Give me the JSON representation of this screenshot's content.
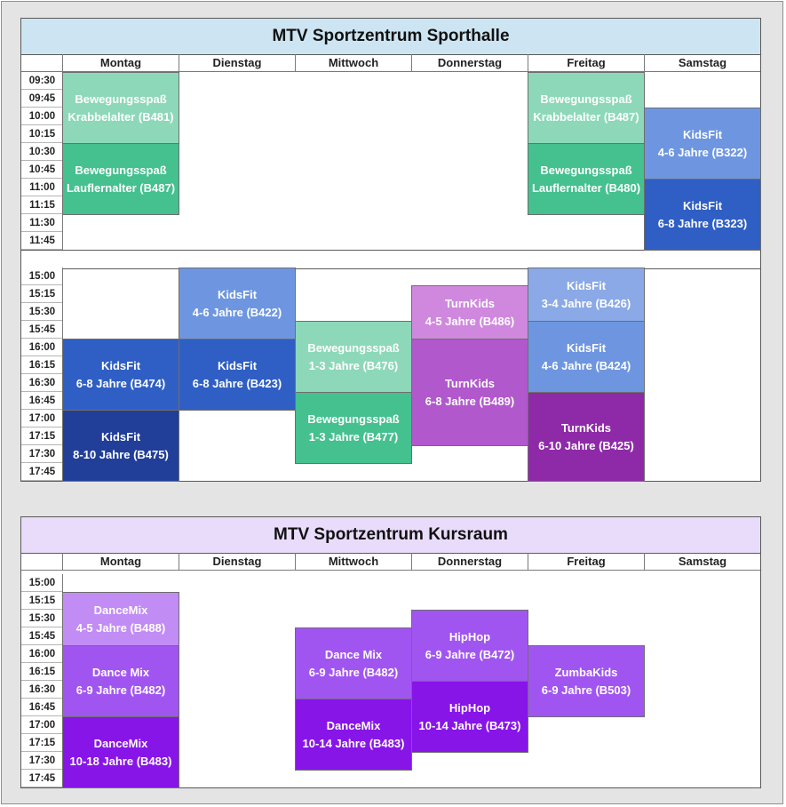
{
  "colors": {
    "mint": "#8dd8b9",
    "green": "#45c08f",
    "blue_light": "#6e96e0",
    "blue_mid": "#2f5fc4",
    "blue_dark": "#213f99",
    "blue_pale": "#8aa9e6",
    "violet_light": "#cf88de",
    "violet": "#b158cc",
    "purple": "#8e2aa8",
    "lav_light": "#c18cf3",
    "lav": "#a155f0",
    "lav_deep": "#8715e8"
  },
  "days": [
    "Montag",
    "Dienstag",
    "Mittwoch",
    "Donnerstag",
    "Freitag",
    "Samstag"
  ],
  "halle": {
    "title": "MTV Sportzentrum Sporthalle",
    "morning_times": [
      "09:30",
      "09:45",
      "10:00",
      "10:15",
      "10:30",
      "10:45",
      "11:00",
      "11:15",
      "11:30",
      "11:45"
    ],
    "afternoon_times": [
      "15:00",
      "15:15",
      "15:30",
      "15:45",
      "16:00",
      "16:15",
      "16:30",
      "16:45",
      "17:00",
      "17:15",
      "17:30",
      "17:45"
    ],
    "morning": [
      {
        "name": "block-bewegungsspass-b481",
        "day": 0,
        "start": 0,
        "len": 4,
        "color": "mint",
        "line1": "Bewegungsspaß",
        "line2": "Krabbelalter (B481)"
      },
      {
        "name": "block-bewegungsspass-b487",
        "day": 0,
        "start": 4,
        "len": 4,
        "color": "green",
        "line1": "Bewegungsspaß",
        "line2": "Lauflernalter (B487)"
      },
      {
        "name": "block-bewegungsspass-b487-fr",
        "day": 4,
        "start": 0,
        "len": 4,
        "color": "mint",
        "line1": "Bewegungsspaß",
        "line2": "Krabbelalter (B487)"
      },
      {
        "name": "block-bewegungsspass-b480",
        "day": 4,
        "start": 4,
        "len": 4,
        "color": "green",
        "line1": "Bewegungsspaß",
        "line2": "Lauflernalter (B480)"
      },
      {
        "name": "block-kidsfit-b322",
        "day": 5,
        "start": 2,
        "len": 4,
        "color": "blue_light",
        "line1": "KidsFit",
        "line2": "4-6 Jahre (B322)"
      },
      {
        "name": "block-kidsfit-b323",
        "day": 5,
        "start": 6,
        "len": 4,
        "color": "blue_mid",
        "line1": "KidsFit",
        "line2": "6-8 Jahre (B323)"
      }
    ],
    "afternoon": [
      {
        "name": "block-kidsfit-b474",
        "day": 0,
        "start": 4,
        "len": 4,
        "color": "blue_mid",
        "line1": "KidsFit",
        "line2": "6-8 Jahre (B474)"
      },
      {
        "name": "block-kidsfit-b475",
        "day": 0,
        "start": 8,
        "len": 4,
        "color": "blue_dark",
        "line1": "KidsFit",
        "line2": "8-10 Jahre (B475)"
      },
      {
        "name": "block-kidsfit-b422",
        "day": 1,
        "start": 0,
        "len": 4,
        "color": "blue_light",
        "line1": "KidsFit",
        "line2": "4-6 Jahre (B422)"
      },
      {
        "name": "block-kidsfit-b423",
        "day": 1,
        "start": 4,
        "len": 4,
        "color": "blue_mid",
        "line1": "KidsFit",
        "line2": "6-8 Jahre  (B423)"
      },
      {
        "name": "block-bewegungsspass-b476",
        "day": 2,
        "start": 3,
        "len": 4,
        "color": "mint",
        "line1": "Bewegungsspaß",
        "line2": "1-3 Jahre (B476)"
      },
      {
        "name": "block-bewegungsspass-b477",
        "day": 2,
        "start": 7,
        "len": 4,
        "color": "green",
        "line1": "Bewegungsspaß",
        "line2": "1-3 Jahre (B477)"
      },
      {
        "name": "block-turnkids-b486",
        "day": 3,
        "start": 1,
        "len": 3,
        "color": "violet_light",
        "line1": "TurnKids",
        "line2": "4-5 Jahre (B486)"
      },
      {
        "name": "block-turnkids-b489",
        "day": 3,
        "start": 4,
        "len": 6,
        "color": "violet",
        "line1": "TurnKids",
        "line2": "6-8 Jahre (B489)"
      },
      {
        "name": "block-kidsfit-b426",
        "day": 4,
        "start": 0,
        "len": 3,
        "color": "blue_pale",
        "line1": "KidsFit",
        "line2": "3-4 Jahre (B426)"
      },
      {
        "name": "block-kidsfit-b424",
        "day": 4,
        "start": 3,
        "len": 4,
        "color": "blue_light",
        "line1": "KidsFit",
        "line2": "4-6 Jahre (B424)"
      },
      {
        "name": "block-turnkids-b425",
        "day": 4,
        "start": 7,
        "len": 5,
        "color": "purple",
        "line1": "TurnKids",
        "line2": "6-10 Jahre (B425)"
      }
    ]
  },
  "kursraum": {
    "title": "MTV Sportzentrum Kursraum",
    "times": [
      "15:00",
      "15:15",
      "15:30",
      "15:45",
      "16:00",
      "16:15",
      "16:30",
      "16:45",
      "17:00",
      "17:15",
      "17:30",
      "17:45"
    ],
    "blocks": [
      {
        "name": "block-dancemix-b488",
        "day": 0,
        "start": 1,
        "len": 3,
        "color": "lav_light",
        "line1": "DanceMix",
        "line2": "4-5 Jahre (B488)"
      },
      {
        "name": "block-dancemix-b482",
        "day": 0,
        "start": 4,
        "len": 4,
        "color": "lav",
        "line1": "Dance Mix",
        "line2": "6-9 Jahre (B482)"
      },
      {
        "name": "block-dancemix-b483",
        "day": 0,
        "start": 8,
        "len": 4,
        "color": "lav_deep",
        "line1": "DanceMix",
        "line2": "10-18 Jahre (B483)"
      },
      {
        "name": "block-dancemix-b482-mi",
        "day": 2,
        "start": 3,
        "len": 4,
        "color": "lav",
        "line1": "Dance Mix",
        "line2": "6-9 Jahre (B482)"
      },
      {
        "name": "block-dancemix-b483-mi",
        "day": 2,
        "start": 7,
        "len": 4,
        "color": "lav_deep",
        "line1": "DanceMix",
        "line2": "10-14 Jahre (B483)"
      },
      {
        "name": "block-hiphop-b472",
        "day": 3,
        "start": 2,
        "len": 4,
        "color": "lav",
        "line1": "HipHop",
        "line2": "6-9 Jahre (B472)"
      },
      {
        "name": "block-hiphop-b473",
        "day": 3,
        "start": 6,
        "len": 4,
        "color": "lav_deep",
        "line1": "HipHop",
        "line2": "10-14 Jahre (B473)"
      },
      {
        "name": "block-zumbakids-b503",
        "day": 4,
        "start": 4,
        "len": 4,
        "color": "lav",
        "line1": "ZumbaKids",
        "line2": "6-9 Jahre (B503)"
      }
    ]
  }
}
